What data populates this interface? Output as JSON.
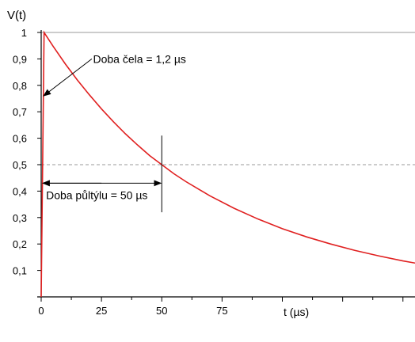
{
  "chart_data": {
    "type": "line",
    "title": "",
    "ylabel": "V(t)",
    "xlabel": "t (µs)",
    "xlim": [
      0,
      155
    ],
    "ylim": [
      0,
      1
    ],
    "x_ticks": [
      0,
      25,
      50,
      75
    ],
    "x_tick_labels": [
      "0",
      "25",
      "50",
      "75"
    ],
    "y_ticks": [
      0.1,
      0.2,
      0.3,
      0.4,
      0.5,
      0.6,
      0.7,
      0.8,
      0.9,
      1
    ],
    "y_tick_labels": [
      "0,1",
      "0,2",
      "0,3",
      "0,4",
      "0,5",
      "0,6",
      "0,7",
      "0,8",
      "0,9",
      "1"
    ],
    "series": [
      {
        "color": "#e02020",
        "x": [
          0,
          1.2,
          5,
          10,
          15,
          20,
          25,
          30,
          35,
          40,
          45,
          50,
          55,
          60,
          70,
          80,
          90,
          100,
          110,
          120,
          130,
          140,
          150,
          155
        ],
        "y": [
          0,
          1,
          0.947,
          0.881,
          0.82,
          0.764,
          0.711,
          0.662,
          0.616,
          0.574,
          0.534,
          0.5,
          0.466,
          0.436,
          0.382,
          0.335,
          0.294,
          0.258,
          0.227,
          0.2,
          0.176,
          0.155,
          0.136,
          0.128
        ]
      }
    ],
    "reference_lines": [
      {
        "y": 1,
        "style": "solid",
        "color": "#999999"
      },
      {
        "y": 0.5,
        "style": "dashed",
        "color": "#999999"
      }
    ],
    "annotations": [
      {
        "text": "Doba čela = 1,2 µs"
      },
      {
        "text": "Doba půltýlu = 50 µs"
      }
    ],
    "grid": false,
    "legend": "none"
  }
}
